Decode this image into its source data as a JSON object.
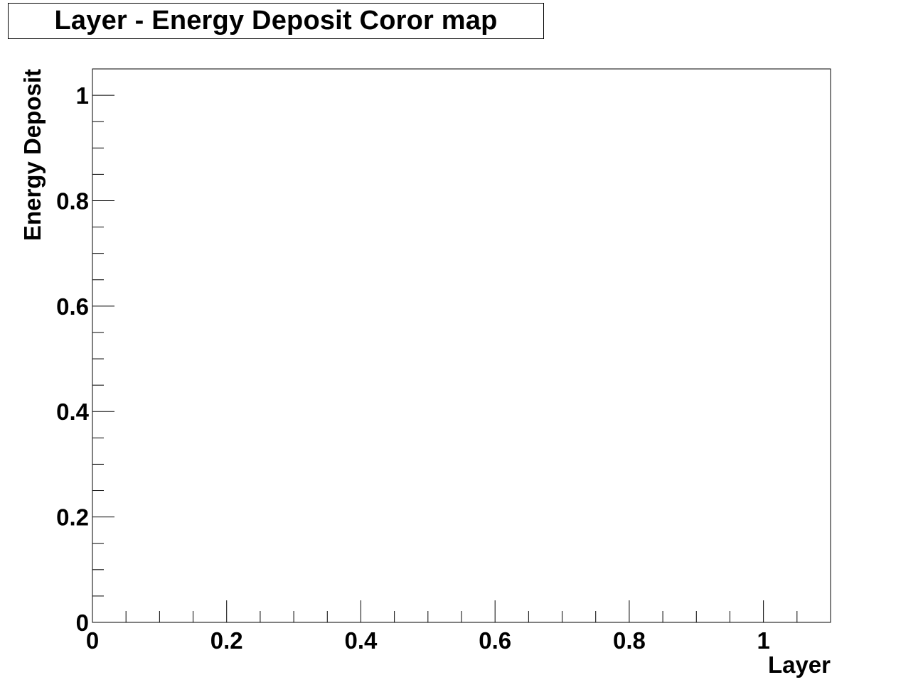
{
  "chart_data": {
    "type": "heatmap",
    "title": "Layer - Energy Deposit Coror map",
    "xlabel": "Layer",
    "ylabel": "Energy Deposit",
    "xlim": [
      0,
      1.1
    ],
    "ylim": [
      0,
      1.05
    ],
    "x_ticks": [
      0,
      0.2,
      0.4,
      0.6,
      0.8,
      1
    ],
    "y_ticks": [
      0,
      0.2,
      0.4,
      0.6,
      0.8,
      1
    ],
    "x_tick_labels": [
      "0",
      "0.2",
      "0.4",
      "0.6",
      "0.8",
      "1"
    ],
    "y_tick_labels": [
      "0",
      "0.2",
      "0.4",
      "0.6",
      "0.8",
      "1"
    ],
    "x_minor_step": 0.05,
    "y_minor_step": 0.05,
    "grid": false,
    "values": [],
    "colors": {
      "frame": "#000000",
      "background": "#ffffff",
      "text": "#000000"
    }
  }
}
